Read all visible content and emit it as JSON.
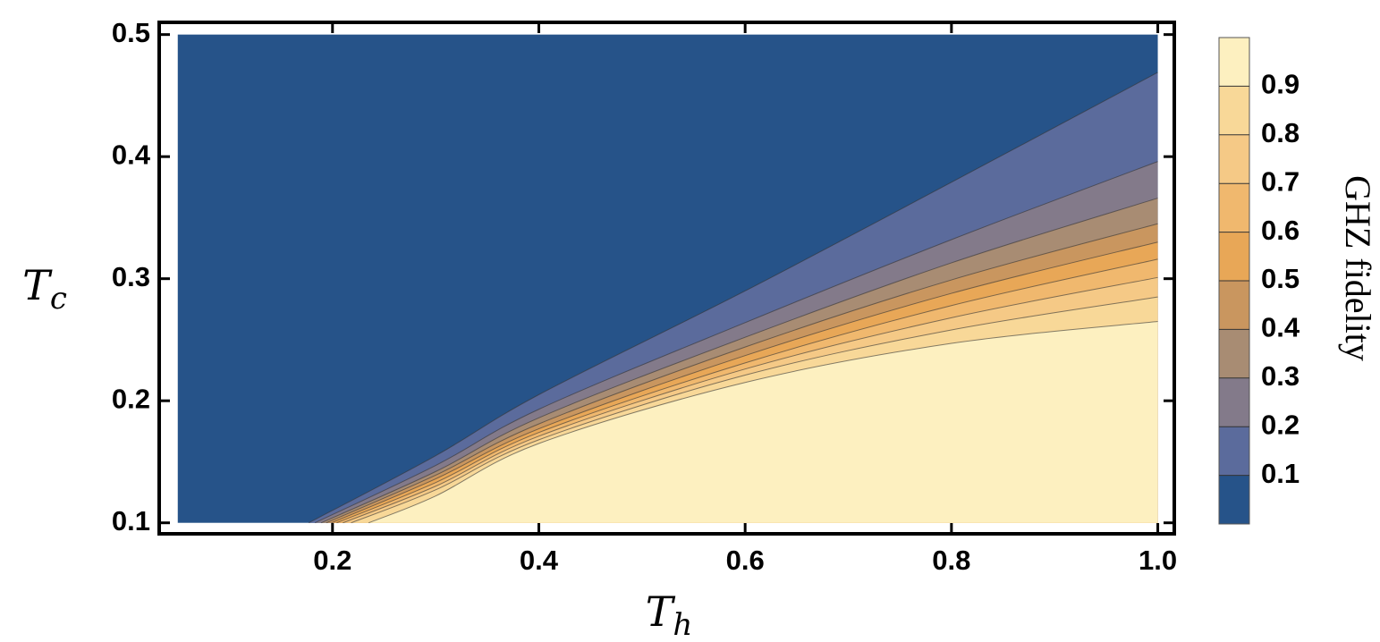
{
  "chart_data": {
    "type": "contour",
    "xlabel": {
      "main": "T",
      "sub": "h"
    },
    "ylabel": {
      "main": "T",
      "sub": "c"
    },
    "xlim": [
      0.032,
      1.016
    ],
    "ylim": [
      0.091,
      0.51
    ],
    "xticks": [
      0.2,
      0.4,
      0.6,
      0.8,
      {
        "value": 1,
        "label": "1.0"
      }
    ],
    "yticks": [
      0.1,
      0.2,
      0.3,
      0.4,
      0.5
    ],
    "xrange": [
      0.05,
      1
    ],
    "yrange": [
      0.1,
      0.5
    ],
    "contours": [
      {
        "x": [
          0.177,
          0.3,
          0.4,
          0.6,
          0.8,
          1.0
        ],
        "y": [
          0.1,
          0.155,
          0.205,
          0.29,
          0.379,
          0.469
        ]
      },
      {
        "x": [
          0.183,
          0.3,
          0.4,
          0.6,
          0.8,
          1.0
        ],
        "y": [
          0.1,
          0.147,
          0.193,
          0.264,
          0.332,
          0.396
        ]
      },
      {
        "x": [
          0.189,
          0.3,
          0.4,
          0.6,
          0.8,
          1.0
        ],
        "y": [
          0.1,
          0.142,
          0.186,
          0.252,
          0.313,
          0.366
        ]
      },
      {
        "x": [
          0.194,
          0.3,
          0.4,
          0.6,
          0.8,
          1.0
        ],
        "y": [
          0.1,
          0.139,
          0.181,
          0.244,
          0.299,
          0.345
        ]
      },
      {
        "x": [
          0.199,
          0.3,
          0.4,
          0.6,
          0.8,
          1.0
        ],
        "y": [
          0.1,
          0.136,
          0.177,
          0.237,
          0.288,
          0.33
        ]
      },
      {
        "x": [
          0.204,
          0.3,
          0.4,
          0.6,
          0.8,
          1.0
        ],
        "y": [
          0.1,
          0.133,
          0.174,
          0.231,
          0.278,
          0.316
        ]
      },
      {
        "x": [
          0.21,
          0.3,
          0.4,
          0.6,
          0.8,
          1.0
        ],
        "y": [
          0.1,
          0.13,
          0.171,
          0.226,
          0.268,
          0.301
        ]
      },
      {
        "x": [
          0.218,
          0.3,
          0.4,
          0.6,
          0.8,
          1.0
        ],
        "y": [
          0.1,
          0.127,
          0.168,
          0.221,
          0.258,
          0.285
        ]
      },
      {
        "x": [
          0.235,
          0.3,
          0.4,
          0.6,
          0.8,
          1.0
        ],
        "y": [
          0.1,
          0.122,
          0.165,
          0.215,
          0.247,
          0.265
        ]
      }
    ],
    "colorbar": {
      "label": "GHZ fidelity",
      "lim": [
        0,
        1
      ],
      "ticks": [
        0.1,
        0.2,
        0.3,
        0.4,
        0.5,
        0.6,
        0.7,
        0.8,
        0.9
      ],
      "colors": [
        "#265389",
        "#5b6b9c",
        "#837a8a",
        "#a88c73",
        "#c9965f",
        "#e8a757",
        "#f0b86e",
        "#f5c986",
        "#f8d898",
        "#fdf0c0"
      ]
    }
  }
}
